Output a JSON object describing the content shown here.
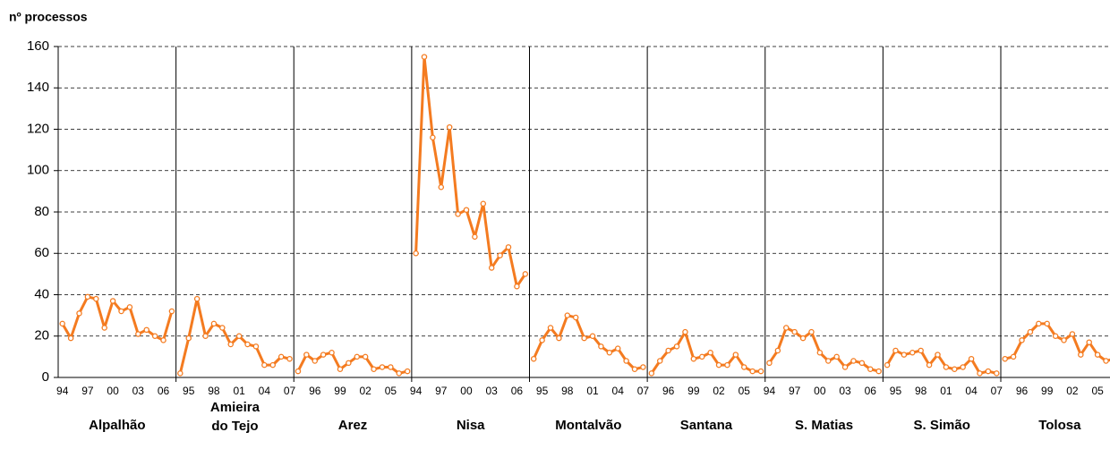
{
  "chart_data": {
    "type": "line",
    "y_label": "nº processos",
    "ylim": [
      0,
      160
    ],
    "yticks": [
      0,
      20,
      40,
      60,
      80,
      100,
      120,
      140,
      160
    ],
    "grid": true,
    "color": "#f47b20",
    "groups": [
      "Alpalhão",
      "Amieira\ndo Tejo",
      "Arez",
      "Nisa",
      "Montalvão",
      "Santana",
      "S. Matias",
      "S. Simão",
      "Tolosa"
    ],
    "categories": [
      "94",
      null,
      null,
      "97",
      null,
      null,
      "00",
      null,
      null,
      "03",
      null,
      null,
      "06",
      null,
      null,
      "95",
      null,
      null,
      "98",
      null,
      null,
      "01",
      null,
      null,
      "04",
      null,
      null,
      "07",
      null,
      null,
      "96",
      null,
      null,
      "99",
      null,
      null,
      "02",
      null,
      null,
      "05",
      null,
      null,
      "94",
      null,
      null,
      "97",
      null,
      null,
      "00",
      null,
      null,
      "03",
      null,
      null,
      "06",
      null,
      null,
      "95",
      null,
      null,
      "98",
      null,
      null,
      "01",
      null,
      null,
      "04",
      null,
      null,
      "07",
      null,
      null,
      "96",
      null,
      null,
      "99",
      null,
      null,
      "02",
      null,
      null,
      "05",
      null,
      null,
      "94",
      null,
      null,
      "97",
      null,
      null,
      "00",
      null,
      null,
      "03",
      null,
      null,
      "06",
      null,
      null,
      "95",
      null,
      null,
      "98",
      null,
      null,
      "01",
      null,
      null,
      "04",
      null,
      null,
      "07",
      null,
      null,
      "96",
      null,
      null,
      "99",
      null,
      null,
      "02",
      null,
      null,
      "05",
      null,
      null
    ],
    "values": [
      26,
      19,
      31,
      39,
      38,
      24,
      37,
      32,
      34,
      21,
      23,
      20,
      18,
      32,
      2,
      19,
      38,
      20,
      26,
      24,
      16,
      20,
      16,
      15,
      6,
      6,
      10,
      9,
      3,
      11,
      8,
      11,
      12,
      4,
      7,
      10,
      10,
      4,
      5,
      5,
      2,
      3,
      60,
      155,
      116,
      92,
      121,
      79,
      81,
      68,
      84,
      53,
      59,
      63,
      44,
      50,
      9,
      18,
      24,
      19,
      30,
      29,
      19,
      20,
      15,
      12,
      14,
      8,
      4,
      5,
      2,
      8,
      13,
      15,
      22,
      9,
      10,
      12,
      6,
      6,
      11,
      5,
      3,
      3,
      7,
      13,
      24,
      22,
      19,
      22,
      12,
      8,
      10,
      5,
      8,
      7,
      4,
      3,
      6,
      13,
      11,
      12,
      13,
      6,
      11,
      5,
      4,
      5,
      9,
      2,
      3,
      2,
      9,
      10,
      18,
      22,
      26,
      26,
      20,
      18,
      21,
      11,
      17,
      11,
      8,
      9
    ]
  }
}
